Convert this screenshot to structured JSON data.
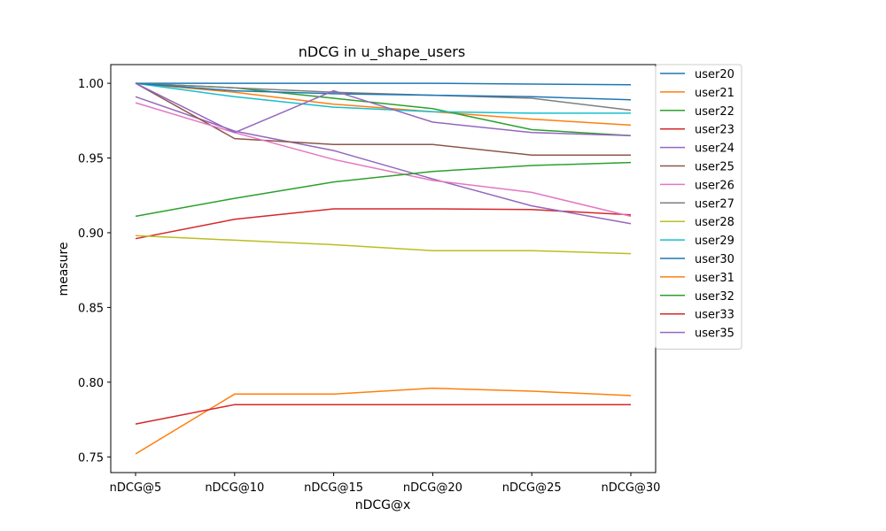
{
  "chart_data": {
    "type": "line",
    "title": "nDCG in u_shape_users",
    "xlabel": "nDCG@x",
    "ylabel": "measure",
    "categories": [
      "nDCG@5",
      "nDCG@10",
      "nDCG@15",
      "nDCG@20",
      "nDCG@25",
      "nDCG@30"
    ],
    "ylim": [
      0.7395,
      1.0125
    ],
    "yticks": [
      0.75,
      0.8,
      0.85,
      0.9,
      0.95,
      1.0
    ],
    "ytick_labels": [
      "0.75",
      "0.80",
      "0.85",
      "0.90",
      "0.95",
      "1.00"
    ],
    "grid": false,
    "legend": "outside-right",
    "series": [
      {
        "name": "user20",
        "color": "#1f77b4",
        "values": [
          1.0,
          1.0,
          1.0,
          1.0,
          0.9995,
          0.999
        ]
      },
      {
        "name": "user21",
        "color": "#ff7f0e",
        "values": [
          1.0,
          0.994,
          0.986,
          0.981,
          0.976,
          0.972
        ]
      },
      {
        "name": "user22",
        "color": "#2ca02c",
        "values": [
          1.0,
          0.997,
          0.99,
          0.983,
          0.969,
          0.965
        ]
      },
      {
        "name": "user23",
        "color": "#d62728",
        "values": [
          0.896,
          0.909,
          0.916,
          0.916,
          0.9155,
          0.912
        ]
      },
      {
        "name": "user24",
        "color": "#9467bd",
        "values": [
          0.991,
          0.968,
          0.955,
          0.936,
          0.918,
          0.906
        ]
      },
      {
        "name": "user25",
        "color": "#8c564b",
        "values": [
          1.0,
          0.963,
          0.959,
          0.959,
          0.952,
          0.952
        ]
      },
      {
        "name": "user26",
        "color": "#e377c2",
        "values": [
          0.987,
          0.967,
          0.949,
          0.935,
          0.927,
          0.911
        ]
      },
      {
        "name": "user27",
        "color": "#7f7f7f",
        "values": [
          1.0,
          0.997,
          0.994,
          0.992,
          0.99,
          0.982
        ]
      },
      {
        "name": "user28",
        "color": "#bcbd22",
        "values": [
          0.898,
          0.895,
          0.892,
          0.888,
          0.888,
          0.886
        ]
      },
      {
        "name": "user29",
        "color": "#17becf",
        "values": [
          1.0,
          0.991,
          0.984,
          0.981,
          0.98,
          0.98
        ]
      },
      {
        "name": "user30",
        "color": "#1f77b4",
        "values": [
          1.0,
          0.995,
          0.993,
          0.992,
          0.991,
          0.989
        ]
      },
      {
        "name": "user31",
        "color": "#ff7f0e",
        "values": [
          0.752,
          0.792,
          0.792,
          0.796,
          0.794,
          0.791
        ]
      },
      {
        "name": "user32",
        "color": "#2ca02c",
        "values": [
          0.911,
          0.923,
          0.934,
          0.941,
          0.945,
          0.947
        ]
      },
      {
        "name": "user33",
        "color": "#d62728",
        "values": [
          0.772,
          0.785,
          0.785,
          0.785,
          0.785,
          0.785
        ]
      },
      {
        "name": "user35",
        "color": "#9467bd",
        "values": [
          1.0,
          0.967,
          0.995,
          0.974,
          0.967,
          0.965
        ]
      }
    ]
  }
}
